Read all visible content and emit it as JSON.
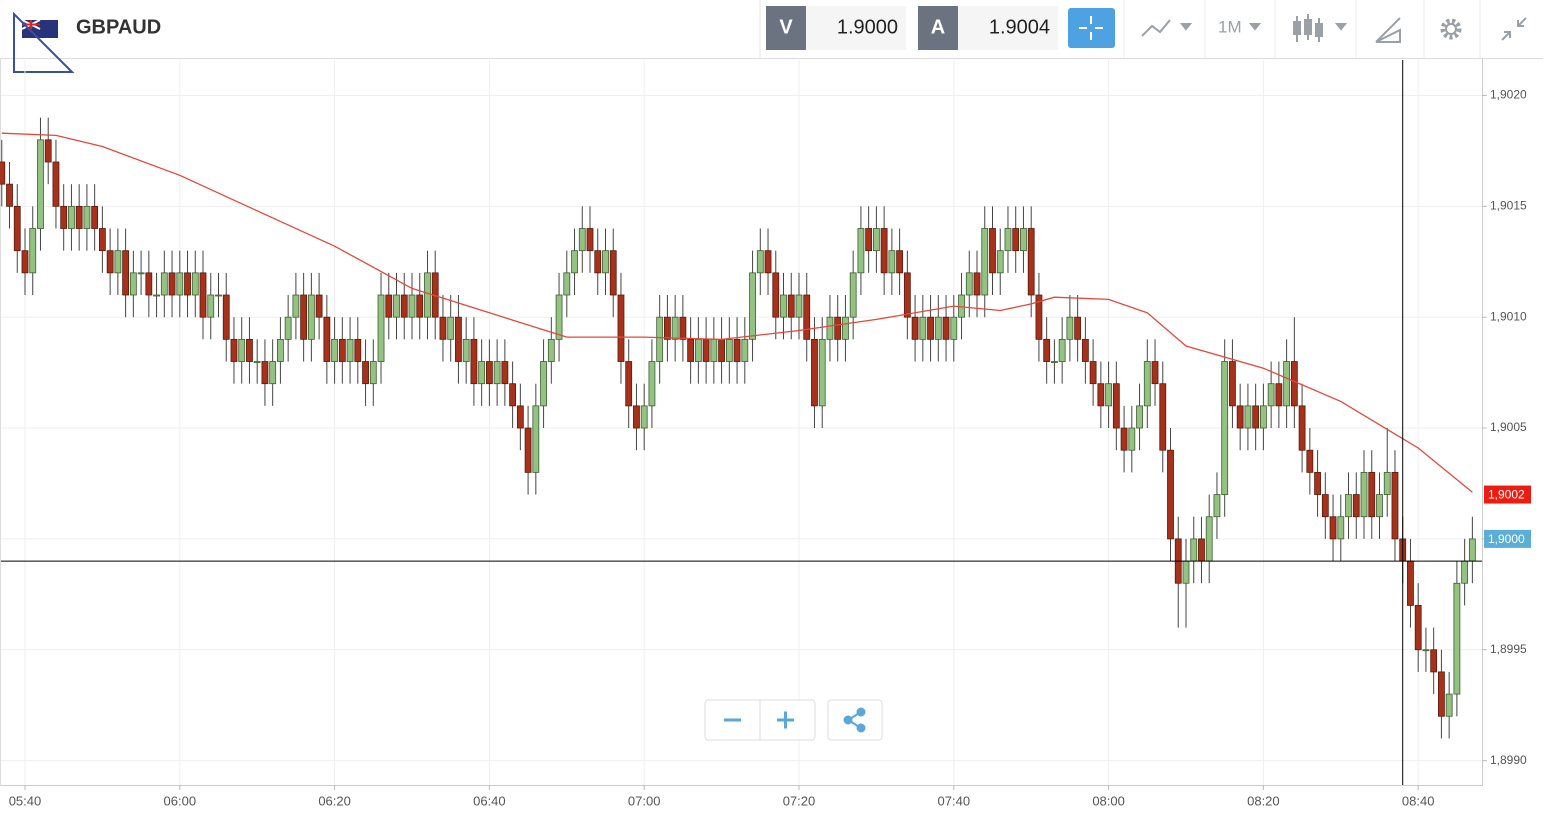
{
  "header": {
    "symbol": "GBPAUD",
    "sell_label": "V",
    "sell_price": "1.9000",
    "buy_label": "A",
    "buy_price": "1.9004",
    "timeframe": "1M"
  },
  "chart_data": {
    "type": "candlestick",
    "x": [
      "05:37",
      "05:38",
      "05:39",
      "05:40",
      "05:41",
      "05:42",
      "05:43",
      "05:44",
      "05:45",
      "05:46",
      "05:47",
      "05:48",
      "05:49",
      "05:50",
      "05:51",
      "05:52",
      "05:53",
      "05:54",
      "05:55",
      "05:56",
      "05:57",
      "05:58",
      "05:59",
      "06:00",
      "06:01",
      "06:02",
      "06:03",
      "06:04",
      "06:05",
      "06:06",
      "06:07",
      "06:08",
      "06:09",
      "06:10",
      "06:11",
      "06:12",
      "06:13",
      "06:14",
      "06:15",
      "06:16",
      "06:17",
      "06:18",
      "06:19",
      "06:20",
      "06:21",
      "06:22",
      "06:23",
      "06:24",
      "06:25",
      "06:26",
      "06:27",
      "06:28",
      "06:29",
      "06:30",
      "06:31",
      "06:32",
      "06:33",
      "06:34",
      "06:35",
      "06:36",
      "06:37",
      "06:38",
      "06:39",
      "06:40",
      "06:41",
      "06:42",
      "06:43",
      "06:44",
      "06:45",
      "06:46",
      "06:47",
      "06:48",
      "06:49",
      "06:50",
      "06:51",
      "06:52",
      "06:53",
      "06:54",
      "06:55",
      "06:56",
      "06:57",
      "06:58",
      "06:59",
      "07:00",
      "07:01",
      "07:02",
      "07:03",
      "07:04",
      "07:05",
      "07:06",
      "07:07",
      "07:08",
      "07:09",
      "07:10",
      "07:11",
      "07:12",
      "07:13",
      "07:14",
      "07:15",
      "07:16",
      "07:17",
      "07:18",
      "07:19",
      "07:20",
      "07:21",
      "07:22",
      "07:23",
      "07:24",
      "07:25",
      "07:26",
      "07:27",
      "07:28",
      "07:29",
      "07:30",
      "07:31",
      "07:32",
      "07:33",
      "07:34",
      "07:35",
      "07:36",
      "07:37",
      "07:38",
      "07:39",
      "07:40",
      "07:41",
      "07:42",
      "07:43",
      "07:44",
      "07:45",
      "07:46",
      "07:47",
      "07:48",
      "07:49",
      "07:50",
      "07:51",
      "07:52",
      "07:53",
      "07:54",
      "07:55",
      "07:56",
      "07:57",
      "07:58",
      "07:59",
      "08:00",
      "08:01",
      "08:02",
      "08:03",
      "08:04",
      "08:05",
      "08:06",
      "08:07",
      "08:08",
      "08:09",
      "08:10",
      "08:11",
      "08:12",
      "08:13",
      "08:14",
      "08:15",
      "08:16",
      "08:17",
      "08:18",
      "08:19",
      "08:20",
      "08:21",
      "08:22",
      "08:23",
      "08:24",
      "08:25",
      "08:26",
      "08:27",
      "08:28",
      "08:29",
      "08:30",
      "08:31",
      "08:32",
      "08:33",
      "08:34",
      "08:35",
      "08:36",
      "08:37",
      "08:38",
      "08:39",
      "08:40",
      "08:41",
      "08:42",
      "08:43",
      "08:44",
      "08:45",
      "08:46",
      "08:47"
    ],
    "open": [
      1.9017,
      1.9016,
      1.9015,
      1.9013,
      1.9012,
      1.9014,
      1.9018,
      1.9017,
      1.9015,
      1.9014,
      1.9015,
      1.9014,
      1.9015,
      1.9014,
      1.9013,
      1.9012,
      1.9013,
      1.9011,
      1.9012,
      1.9012,
      1.9011,
      1.9011,
      1.9012,
      1.9011,
      1.9012,
      1.9011,
      1.9012,
      1.901,
      1.9011,
      1.9011,
      1.9009,
      1.9008,
      1.9009,
      1.9008,
      1.9008,
      1.9007,
      1.9008,
      1.9009,
      1.901,
      1.9011,
      1.9009,
      1.9011,
      1.901,
      1.9008,
      1.9009,
      1.9008,
      1.9009,
      1.9008,
      1.9007,
      1.9008,
      1.9011,
      1.901,
      1.9011,
      1.901,
      1.9011,
      1.901,
      1.9012,
      1.901,
      1.9009,
      1.901,
      1.9008,
      1.9009,
      1.9007,
      1.9008,
      1.9007,
      1.9008,
      1.9007,
      1.9006,
      1.9005,
      1.9003,
      1.9006,
      1.9008,
      1.9009,
      1.9011,
      1.9012,
      1.9013,
      1.9014,
      1.9013,
      1.9012,
      1.9013,
      1.9011,
      1.9008,
      1.9006,
      1.9005,
      1.9006,
      1.9008,
      1.901,
      1.9009,
      1.901,
      1.9009,
      1.9008,
      1.9009,
      1.9008,
      1.9009,
      1.9008,
      1.9009,
      1.9008,
      1.9009,
      1.9012,
      1.9013,
      1.9012,
      1.901,
      1.9011,
      1.901,
      1.9011,
      1.9009,
      1.9006,
      1.9009,
      1.901,
      1.9009,
      1.901,
      1.9012,
      1.9014,
      1.9013,
      1.9014,
      1.9012,
      1.9013,
      1.9012,
      1.901,
      1.9009,
      1.901,
      1.9009,
      1.901,
      1.9009,
      1.901,
      1.9011,
      1.9012,
      1.9011,
      1.9014,
      1.9012,
      1.9013,
      1.9014,
      1.9013,
      1.9014,
      1.9011,
      1.9009,
      1.9008,
      1.9008,
      1.9009,
      1.901,
      1.9009,
      1.9008,
      1.9007,
      1.9006,
      1.9007,
      1.9005,
      1.9004,
      1.9005,
      1.9006,
      1.9008,
      1.9007,
      1.9004,
      1.9,
      1.8998,
      1.8999,
      1.9,
      1.8999,
      1.9001,
      1.9002,
      1.9008,
      1.9006,
      1.9005,
      1.9006,
      1.9005,
      1.9006,
      1.9007,
      1.9006,
      1.9008,
      1.9006,
      1.9004,
      1.9003,
      1.9002,
      1.9001,
      1.9,
      1.9001,
      1.9002,
      1.9001,
      1.9003,
      1.9001,
      1.9002,
      1.9003,
      1.9,
      1.8999,
      1.8997,
      1.8995,
      1.8995,
      1.8994,
      1.8992,
      1.8993,
      1.8998,
      1.8999
    ],
    "high": [
      1.9018,
      1.9017,
      1.9016,
      1.9014,
      1.9015,
      1.9019,
      1.9019,
      1.9018,
      1.9016,
      1.9016,
      1.9016,
      1.9016,
      1.9016,
      1.9015,
      1.9014,
      1.9014,
      1.9014,
      1.9013,
      1.9013,
      1.9013,
      1.9012,
      1.9013,
      1.9013,
      1.9013,
      1.9013,
      1.9013,
      1.9013,
      1.9012,
      1.9012,
      1.9012,
      1.901,
      1.901,
      1.901,
      1.9009,
      1.9009,
      1.9009,
      1.901,
      1.9011,
      1.9012,
      1.9012,
      1.9012,
      1.9012,
      1.9011,
      1.901,
      1.901,
      1.901,
      1.901,
      1.9009,
      1.9009,
      1.9012,
      1.9012,
      1.9012,
      1.9012,
      1.9012,
      1.9012,
      1.9013,
      1.9013,
      1.9011,
      1.9011,
      1.9011,
      1.901,
      1.901,
      1.9009,
      1.9009,
      1.9009,
      1.9009,
      1.9008,
      1.9007,
      1.9006,
      1.9007,
      1.9009,
      1.901,
      1.9012,
      1.9013,
      1.9014,
      1.9015,
      1.9015,
      1.9014,
      1.9014,
      1.9014,
      1.9012,
      1.9009,
      1.9007,
      1.9007,
      1.9009,
      1.9011,
      1.9011,
      1.9011,
      1.9011,
      1.901,
      1.901,
      1.901,
      1.901,
      1.901,
      1.901,
      1.901,
      1.901,
      1.9013,
      1.9014,
      1.9014,
      1.9013,
      1.9012,
      1.9012,
      1.9012,
      1.9012,
      1.901,
      1.901,
      1.9011,
      1.9011,
      1.9011,
      1.9013,
      1.9015,
      1.9015,
      1.9015,
      1.9015,
      1.9014,
      1.9014,
      1.9013,
      1.9011,
      1.9011,
      1.9011,
      1.9011,
      1.9011,
      1.9011,
      1.9012,
      1.9013,
      1.9013,
      1.9015,
      1.9015,
      1.9014,
      1.9015,
      1.9015,
      1.9015,
      1.9015,
      1.9012,
      1.901,
      1.9009,
      1.901,
      1.9011,
      1.9011,
      1.901,
      1.9009,
      1.9008,
      1.9008,
      1.9008,
      1.9006,
      1.9006,
      1.9007,
      1.9009,
      1.9009,
      1.9008,
      1.9005,
      1.9001,
      1.9,
      1.9001,
      1.9001,
      1.9002,
      1.9003,
      1.9009,
      1.9009,
      1.9007,
      1.9007,
      1.9007,
      1.9007,
      1.9008,
      1.9008,
      1.9009,
      1.901,
      1.9007,
      1.9005,
      1.9004,
      1.9003,
      1.9002,
      1.9002,
      1.9003,
      1.9003,
      1.9004,
      1.9004,
      1.9003,
      1.9005,
      1.9004,
      1.9001,
      1.9,
      1.8998,
      1.8996,
      1.8996,
      1.8995,
      1.8994,
      1.8999,
      1.9,
      1.9001
    ],
    "low": [
      1.9015,
      1.9014,
      1.9012,
      1.9011,
      1.9011,
      1.9013,
      1.9016,
      1.9014,
      1.9013,
      1.9013,
      1.9013,
      1.9013,
      1.9013,
      1.9012,
      1.9011,
      1.9011,
      1.901,
      1.901,
      1.9011,
      1.901,
      1.901,
      1.901,
      1.901,
      1.901,
      1.901,
      1.901,
      1.9009,
      1.9009,
      1.901,
      1.9008,
      1.9007,
      1.9007,
      1.9007,
      1.9007,
      1.9006,
      1.9006,
      1.9007,
      1.9008,
      1.9009,
      1.9008,
      1.9008,
      1.9009,
      1.9007,
      1.9007,
      1.9007,
      1.9007,
      1.9007,
      1.9006,
      1.9006,
      1.9007,
      1.9009,
      1.9009,
      1.9009,
      1.9009,
      1.9009,
      1.9009,
      1.9009,
      1.9008,
      1.9008,
      1.9007,
      1.9007,
      1.9006,
      1.9006,
      1.9006,
      1.9006,
      1.9006,
      1.9005,
      1.9004,
      1.9002,
      1.9002,
      1.9005,
      1.9007,
      1.9008,
      1.901,
      1.9011,
      1.9012,
      1.9012,
      1.9011,
      1.9011,
      1.901,
      1.9007,
      1.9005,
      1.9004,
      1.9004,
      1.9005,
      1.9007,
      1.9008,
      1.9008,
      1.9008,
      1.9007,
      1.9007,
      1.9007,
      1.9007,
      1.9007,
      1.9007,
      1.9007,
      1.9007,
      1.9008,
      1.9011,
      1.9011,
      1.9009,
      1.9009,
      1.9009,
      1.9009,
      1.9008,
      1.9005,
      1.9005,
      1.9008,
      1.9008,
      1.9008,
      1.9009,
      1.9011,
      1.9012,
      1.9012,
      1.9011,
      1.9011,
      1.9011,
      1.9009,
      1.9008,
      1.9008,
      1.9008,
      1.9008,
      1.9008,
      1.9008,
      1.9009,
      1.901,
      1.901,
      1.901,
      1.9011,
      1.9011,
      1.9012,
      1.9012,
      1.9012,
      1.901,
      1.9008,
      1.9007,
      1.9007,
      1.9007,
      1.9008,
      1.9008,
      1.9007,
      1.9006,
      1.9005,
      1.9005,
      1.9004,
      1.9003,
      1.9003,
      1.9004,
      1.9005,
      1.9006,
      1.9003,
      1.8999,
      1.8996,
      1.8996,
      1.8998,
      1.8998,
      1.8998,
      1.9,
      1.9001,
      1.9005,
      1.9004,
      1.9004,
      1.9004,
      1.9004,
      1.9005,
      1.9005,
      1.9005,
      1.9005,
      1.9003,
      1.9002,
      1.9001,
      1.9,
      1.8999,
      1.8999,
      1.9,
      1.9,
      1.9,
      1.9,
      1.9,
      1.9001,
      1.8999,
      1.8998,
      1.8996,
      1.8994,
      1.8994,
      1.8993,
      1.8991,
      1.8991,
      1.8992,
      1.8997,
      1.8998
    ],
    "close": [
      1.9016,
      1.9015,
      1.9013,
      1.9012,
      1.9014,
      1.9018,
      1.9017,
      1.9015,
      1.9014,
      1.9015,
      1.9014,
      1.9015,
      1.9014,
      1.9013,
      1.9012,
      1.9013,
      1.9011,
      1.9012,
      1.9012,
      1.9011,
      1.9011,
      1.9012,
      1.9011,
      1.9012,
      1.9011,
      1.9012,
      1.901,
      1.9011,
      1.9011,
      1.9009,
      1.9008,
      1.9009,
      1.9008,
      1.9008,
      1.9007,
      1.9008,
      1.9009,
      1.901,
      1.9011,
      1.9009,
      1.9011,
      1.901,
      1.9008,
      1.9009,
      1.9008,
      1.9009,
      1.9008,
      1.9007,
      1.9008,
      1.9011,
      1.901,
      1.9011,
      1.901,
      1.9011,
      1.901,
      1.9012,
      1.901,
      1.9009,
      1.901,
      1.9008,
      1.9009,
      1.9007,
      1.9008,
      1.9007,
      1.9008,
      1.9007,
      1.9006,
      1.9005,
      1.9003,
      1.9006,
      1.9008,
      1.9009,
      1.9011,
      1.9012,
      1.9013,
      1.9014,
      1.9013,
      1.9012,
      1.9013,
      1.9011,
      1.9008,
      1.9006,
      1.9005,
      1.9006,
      1.9008,
      1.901,
      1.9009,
      1.901,
      1.9009,
      1.9008,
      1.9009,
      1.9008,
      1.9009,
      1.9008,
      1.9009,
      1.9008,
      1.9009,
      1.9012,
      1.9013,
      1.9012,
      1.901,
      1.9011,
      1.901,
      1.9011,
      1.9009,
      1.9006,
      1.9009,
      1.901,
      1.9009,
      1.901,
      1.9012,
      1.9014,
      1.9013,
      1.9014,
      1.9012,
      1.9013,
      1.9012,
      1.901,
      1.9009,
      1.901,
      1.9009,
      1.901,
      1.9009,
      1.901,
      1.9011,
      1.9012,
      1.9011,
      1.9014,
      1.9012,
      1.9013,
      1.9014,
      1.9013,
      1.9014,
      1.9011,
      1.9009,
      1.9008,
      1.9008,
      1.9009,
      1.901,
      1.9009,
      1.9008,
      1.9007,
      1.9006,
      1.9007,
      1.9005,
      1.9004,
      1.9005,
      1.9006,
      1.9008,
      1.9007,
      1.9004,
      1.9,
      1.8998,
      1.8999,
      1.9,
      1.8999,
      1.9001,
      1.9002,
      1.9008,
      1.9006,
      1.9005,
      1.9006,
      1.9005,
      1.9006,
      1.9007,
      1.9006,
      1.9008,
      1.9006,
      1.9004,
      1.9003,
      1.9002,
      1.9001,
      1.9,
      1.9001,
      1.9002,
      1.9001,
      1.9003,
      1.9001,
      1.9002,
      1.9003,
      1.9,
      1.8999,
      1.8997,
      1.8995,
      1.8995,
      1.8994,
      1.8992,
      1.8993,
      1.8998,
      1.8999,
      1.9
    ],
    "up_color": "#93c283",
    "down_color": "#a6321b",
    "overlays": [
      {
        "type": "line",
        "color": "#e5473c",
        "x": [
          "05:37",
          "05:44",
          "05:50",
          "06:00",
          "06:10",
          "06:20",
          "06:30",
          "06:40",
          "06:50",
          "07:00",
          "07:10",
          "07:20",
          "07:30",
          "07:40",
          "07:46",
          "07:50",
          "07:53",
          "08:00",
          "08:05",
          "08:10",
          "08:20",
          "08:30",
          "08:40",
          "08:47"
        ],
        "values": [
          1.90183,
          1.90182,
          1.90177,
          1.90164,
          1.90148,
          1.90132,
          1.90113,
          1.90102,
          1.90091,
          1.90091,
          1.9009,
          1.90094,
          1.90099,
          1.90105,
          1.90103,
          1.90106,
          1.90109,
          1.90108,
          1.90102,
          1.90087,
          1.90077,
          1.90062,
          1.90041,
          1.90021
        ]
      }
    ],
    "price_markers": [
      {
        "value": 1.9002,
        "label": "1,9002",
        "color": "#ee1c10"
      },
      {
        "value": 1.9,
        "label": "1,9000",
        "color": "#5aaed8"
      }
    ],
    "crosshair": {
      "x": "08:38",
      "y": 1.8999
    },
    "ylim": [
      1.89889,
      1.90216
    ],
    "yticks": [
      {
        "value": 1.899,
        "label": "1,8990"
      },
      {
        "value": 1.8995,
        "label": "1,8995"
      },
      {
        "value": 1.9,
        "label": "1,9000"
      },
      {
        "value": 1.9005,
        "label": "1,9005"
      },
      {
        "value": 1.901,
        "label": "1,9010"
      },
      {
        "value": 1.9015,
        "label": "1,9015"
      },
      {
        "value": 1.902,
        "label": "1,9020"
      }
    ],
    "xticks": [
      "05:40",
      "06:00",
      "06:20",
      "06:40",
      "07:00",
      "07:20",
      "07:40",
      "08:00",
      "08:20",
      "08:40"
    ],
    "grid": true
  }
}
